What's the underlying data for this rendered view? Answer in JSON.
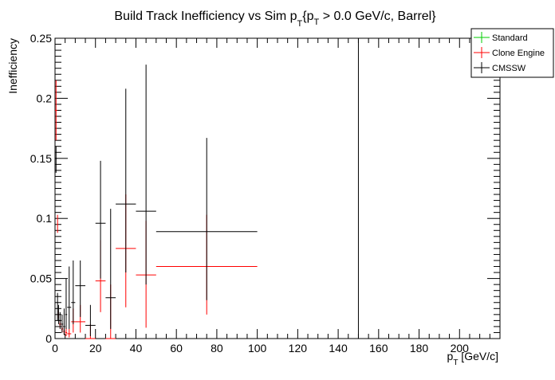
{
  "chart_data": {
    "type": "scatter",
    "title_main": "Build Track Inefficiency vs Sim p",
    "title_sub": "T",
    "title_rest_a": "{p",
    "title_sub2": "T",
    "title_rest_b": " > 0.0 GeV/c, Barrel}",
    "xlabel_main": "p",
    "xlabel_sub": "T",
    "xlabel_rest": " [GeV/c]",
    "ylabel": "Inefficiency",
    "xlim": [
      0,
      220
    ],
    "ylim": [
      0,
      0.25
    ],
    "x_ticks": [
      "0",
      "20",
      "40",
      "60",
      "80",
      "100",
      "120",
      "140",
      "160",
      "180",
      "200"
    ],
    "y_ticks": [
      "0",
      "0.05",
      "0.1",
      "0.15",
      "0.2",
      "0.25"
    ],
    "legend": [
      {
        "name": "Standard",
        "color": "#00cc00"
      },
      {
        "name": "Clone Engine",
        "color": "#ff0000"
      },
      {
        "name": "CMSSW",
        "color": "#000000"
      }
    ],
    "legend_position": "top-right",
    "series": [
      {
        "name": "Standard",
        "color": "#00cc00",
        "points": []
      },
      {
        "name": "Clone Engine",
        "color": "#ff0000",
        "points": [
          {
            "x": 0.5,
            "xerr": 0.5,
            "y": 0.19,
            "ylo": 0.165,
            "yhi": 0.215
          },
          {
            "x": 1.25,
            "xerr": 0.25,
            "y": 0.095,
            "ylo": 0.088,
            "yhi": 0.103
          },
          {
            "x": 1.75,
            "xerr": 0.25,
            "y": 0.02,
            "ylo": 0.017,
            "yhi": 0.023
          },
          {
            "x": 2.5,
            "xerr": 0.5,
            "y": 0.012,
            "ylo": 0.009,
            "yhi": 0.015
          },
          {
            "x": 3.5,
            "xerr": 0.5,
            "y": 0.008,
            "ylo": 0.005,
            "yhi": 0.011
          },
          {
            "x": 4.5,
            "xerr": 0.5,
            "y": 0.006,
            "ylo": 0.003,
            "yhi": 0.009
          },
          {
            "x": 5.5,
            "xerr": 0.5,
            "y": 0.005,
            "ylo": 0.002,
            "yhi": 0.009
          },
          {
            "x": 7,
            "xerr": 1,
            "y": 0.004,
            "ylo": 0.001,
            "yhi": 0.008
          },
          {
            "x": 9,
            "xerr": 1,
            "y": 0.014,
            "ylo": 0.005,
            "yhi": 0.025
          },
          {
            "x": 12.5,
            "xerr": 2.5,
            "y": 0.014,
            "ylo": 0.005,
            "yhi": 0.028
          },
          {
            "x": 17.5,
            "xerr": 2.5,
            "y": 0.0,
            "ylo": 0.0,
            "yhi": 0.012
          },
          {
            "x": 22.5,
            "xerr": 2.5,
            "y": 0.048,
            "ylo": 0.022,
            "yhi": 0.082
          },
          {
            "x": 27.5,
            "xerr": 2.5,
            "y": 0.0,
            "ylo": 0.0,
            "yhi": 0.045
          },
          {
            "x": 35,
            "xerr": 5,
            "y": 0.075,
            "ylo": 0.026,
            "yhi": 0.12
          },
          {
            "x": 45,
            "xerr": 5,
            "y": 0.053,
            "ylo": 0.009,
            "yhi": 0.098
          },
          {
            "x": 75,
            "xerr": 25,
            "y": 0.06,
            "ylo": 0.02,
            "yhi": 0.103
          }
        ]
      },
      {
        "name": "CMSSW",
        "color": "#000000",
        "points": [
          {
            "x": 0.5,
            "xerr": 0.5,
            "y": 0.15,
            "ylo": 0.138,
            "yhi": 0.16
          },
          {
            "x": 1.25,
            "xerr": 0.25,
            "y": 0.03,
            "ylo": 0.015,
            "yhi": 0.038
          },
          {
            "x": 1.75,
            "xerr": 0.25,
            "y": 0.02,
            "ylo": 0.012,
            "yhi": 0.028
          },
          {
            "x": 2.5,
            "xerr": 0.5,
            "y": 0.015,
            "ylo": 0.008,
            "yhi": 0.022
          },
          {
            "x": 3.5,
            "xerr": 0.5,
            "y": 0.012,
            "ylo": 0.005,
            "yhi": 0.02
          },
          {
            "x": 4.5,
            "xerr": 0.5,
            "y": 0.01,
            "ylo": 0.003,
            "yhi": 0.025
          },
          {
            "x": 5.5,
            "xerr": 0.5,
            "y": 0.02,
            "ylo": 0.008,
            "yhi": 0.05
          },
          {
            "x": 7,
            "xerr": 1,
            "y": 0.026,
            "ylo": 0.008,
            "yhi": 0.06
          },
          {
            "x": 9,
            "xerr": 1,
            "y": 0.03,
            "ylo": 0.012,
            "yhi": 0.065
          },
          {
            "x": 12.5,
            "xerr": 2.5,
            "y": 0.044,
            "ylo": 0.018,
            "yhi": 0.065
          },
          {
            "x": 17.5,
            "xerr": 2.5,
            "y": 0.011,
            "ylo": 0.002,
            "yhi": 0.028
          },
          {
            "x": 22.5,
            "xerr": 2.5,
            "y": 0.096,
            "ylo": 0.05,
            "yhi": 0.148
          },
          {
            "x": 27.5,
            "xerr": 2.5,
            "y": 0.034,
            "ylo": 0.008,
            "yhi": 0.108
          },
          {
            "x": 35,
            "xerr": 5,
            "y": 0.112,
            "ylo": 0.055,
            "yhi": 0.208
          },
          {
            "x": 45,
            "xerr": 5,
            "y": 0.106,
            "ylo": 0.045,
            "yhi": 0.228
          },
          {
            "x": 75,
            "xerr": 25,
            "y": 0.089,
            "ylo": 0.032,
            "yhi": 0.167
          },
          {
            "x": 150,
            "xerr": 0,
            "y": 0.125,
            "ylo": 0.0,
            "yhi": 0.25
          }
        ]
      }
    ]
  }
}
